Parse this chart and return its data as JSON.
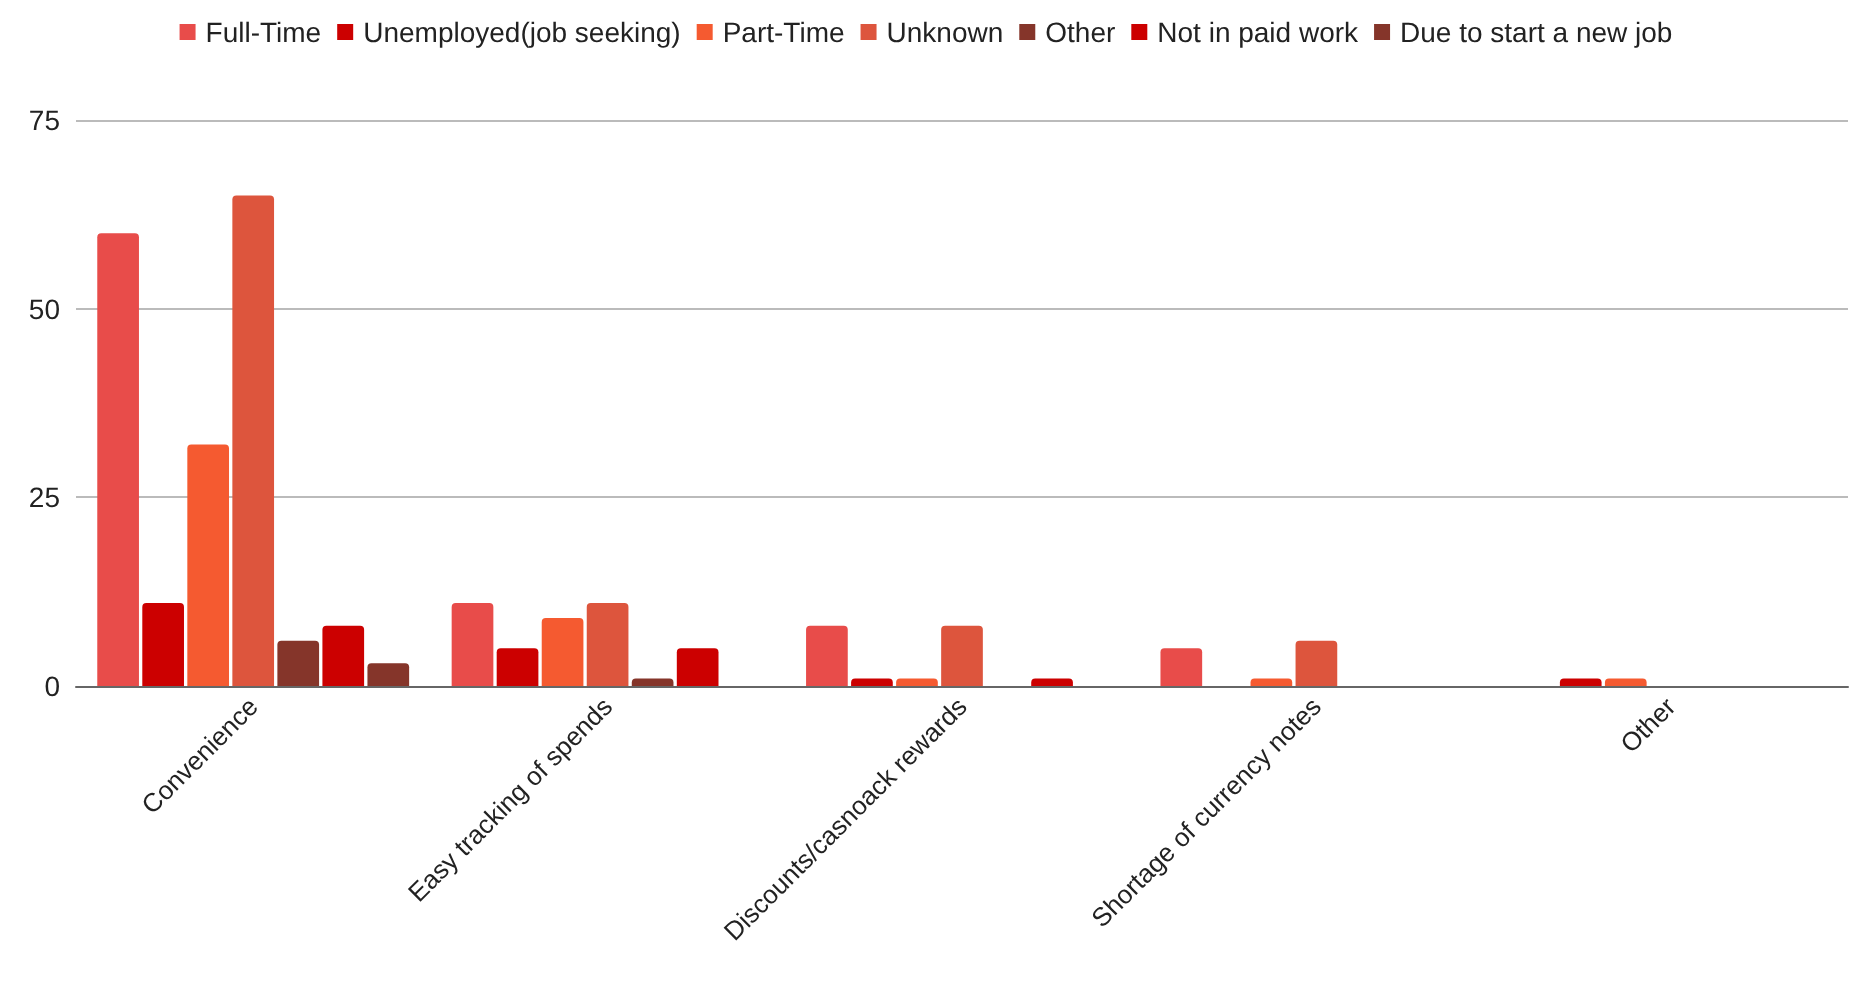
{
  "chart_data": {
    "type": "bar",
    "categories": [
      "Convenience",
      "Easy tracking of spends",
      "Discounts/casnoack rewards",
      "Shortage of currency notes",
      "Other"
    ],
    "series": [
      {
        "name": "Full-Time",
        "color": "#e84c4a",
        "values": [
          60,
          11,
          8,
          5,
          0
        ]
      },
      {
        "name": "Unemployed(job seeking)",
        "color": "#cc0000",
        "values": [
          11,
          5,
          1,
          0,
          1
        ]
      },
      {
        "name": "Part-Time",
        "color": "#f55a30",
        "values": [
          32,
          9,
          1,
          1,
          1
        ]
      },
      {
        "name": "Unknown",
        "color": "#dd553d",
        "values": [
          65,
          11,
          8,
          6,
          0
        ]
      },
      {
        "name": "Other",
        "color": "#85352a",
        "values": [
          6,
          1,
          0,
          0,
          0
        ]
      },
      {
        "name": "Not in paid work",
        "color": "#cc0000",
        "values": [
          8,
          5,
          1,
          0,
          0
        ]
      },
      {
        "name": "Due to start a new job",
        "color": "#85352a",
        "values": [
          3,
          0,
          0,
          0,
          0
        ]
      }
    ],
    "ylim": [
      0,
      75
    ],
    "yticks": [
      0,
      25,
      50,
      75
    ],
    "grid": "y",
    "legend": "top"
  }
}
